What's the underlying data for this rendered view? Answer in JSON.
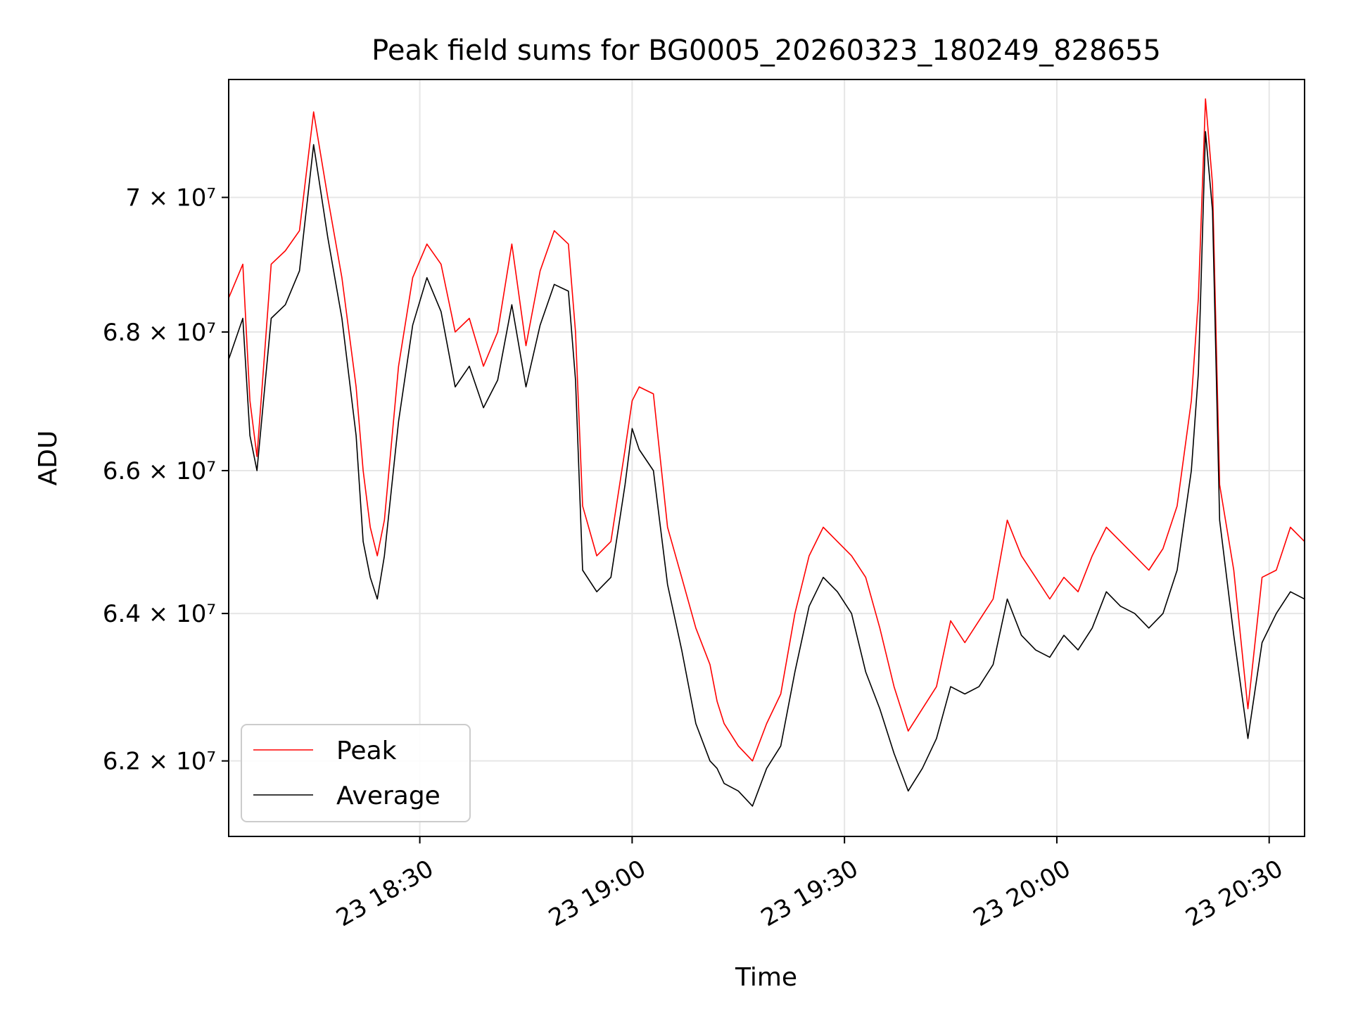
{
  "chart_data": {
    "type": "line",
    "title": "Peak field sums for BG0005_20260323_180249_828655",
    "xlabel": "Time",
    "ylabel": "ADU",
    "y_scale": "log",
    "grid": true,
    "legend_placement": "lower-left",
    "x_range_minutes": [
      0,
      152
    ],
    "ylim": [
      61.0,
      71.8
    ],
    "y_unit": "x 10^6 ADU",
    "x_ticks": [
      {
        "minute": 27,
        "label": "23 18:30"
      },
      {
        "minute": 57,
        "label": "23 19:00"
      },
      {
        "minute": 87,
        "label": "23 19:30"
      },
      {
        "minute": 117,
        "label": "23 20:00"
      },
      {
        "minute": 147,
        "label": "23 20:30"
      }
    ],
    "y_ticks": [
      {
        "value": 62,
        "label": "6.2 × 10⁷"
      },
      {
        "value": 64,
        "label": "6.4 × 10⁷"
      },
      {
        "value": 66,
        "label": "6.6 × 10⁷"
      },
      {
        "value": 68,
        "label": "6.8 × 10⁷"
      },
      {
        "value": 70,
        "label": "7 × 10⁷"
      }
    ],
    "x_minutes": [
      0,
      2,
      3,
      4,
      6,
      8,
      10,
      12,
      14,
      16,
      18,
      19,
      20,
      21,
      22,
      24,
      26,
      28,
      30,
      32,
      34,
      36,
      38,
      40,
      42,
      44,
      46,
      48,
      49,
      50,
      52,
      54,
      56,
      57,
      58,
      60,
      62,
      64,
      66,
      68,
      69,
      70,
      72,
      74,
      76,
      78,
      80,
      82,
      84,
      86,
      88,
      90,
      92,
      94,
      96,
      98,
      100,
      102,
      104,
      106,
      108,
      110,
      112,
      114,
      116,
      118,
      120,
      122,
      124,
      126,
      128,
      130,
      132,
      134,
      136,
      137,
      138,
      139,
      140,
      142,
      144,
      146,
      148,
      150,
      152
    ],
    "series": [
      {
        "name": "Peak",
        "color": "#ff0000",
        "values": [
          68.5,
          69.0,
          67.0,
          66.2,
          69.0,
          69.2,
          69.5,
          71.3,
          70.0,
          68.8,
          67.2,
          66.0,
          65.2,
          64.8,
          65.3,
          67.5,
          68.8,
          69.3,
          69.0,
          68.0,
          68.2,
          67.5,
          68.0,
          69.3,
          67.8,
          68.9,
          69.5,
          69.3,
          68.0,
          65.5,
          64.8,
          65.0,
          66.3,
          67.0,
          67.2,
          67.1,
          65.2,
          64.5,
          63.8,
          63.3,
          62.8,
          62.5,
          62.2,
          62.0,
          62.5,
          62.9,
          64.0,
          64.8,
          65.2,
          65.0,
          64.8,
          64.5,
          63.8,
          63.0,
          62.4,
          62.7,
          63.0,
          63.9,
          63.6,
          63.9,
          64.2,
          65.3,
          64.8,
          64.5,
          64.2,
          64.5,
          64.3,
          64.8,
          65.2,
          65.0,
          64.8,
          64.6,
          64.9,
          65.5,
          67.0,
          68.5,
          71.5,
          70.2,
          65.8,
          64.6,
          62.7,
          64.5,
          64.6,
          65.2,
          65.0
        ]
      },
      {
        "name": "Average",
        "color": "#000000",
        "values": [
          67.6,
          68.2,
          66.5,
          66.0,
          68.2,
          68.4,
          68.9,
          70.8,
          69.4,
          68.2,
          66.5,
          65.0,
          64.5,
          64.2,
          64.8,
          66.7,
          68.1,
          68.8,
          68.3,
          67.2,
          67.5,
          66.9,
          67.3,
          68.4,
          67.2,
          68.1,
          68.7,
          68.6,
          67.3,
          64.6,
          64.3,
          64.5,
          65.8,
          66.6,
          66.3,
          66.0,
          64.4,
          63.5,
          62.5,
          62.0,
          61.9,
          61.7,
          61.6,
          61.4,
          61.9,
          62.2,
          63.2,
          64.1,
          64.5,
          64.3,
          64.0,
          63.2,
          62.7,
          62.1,
          61.6,
          61.9,
          62.3,
          63.0,
          62.9,
          63.0,
          63.3,
          64.2,
          63.7,
          63.5,
          63.4,
          63.7,
          63.5,
          63.8,
          64.3,
          64.1,
          64.0,
          63.8,
          64.0,
          64.6,
          66.0,
          67.4,
          71.0,
          69.8,
          65.3,
          63.7,
          62.3,
          63.6,
          64.0,
          64.3,
          64.2
        ]
      }
    ]
  }
}
